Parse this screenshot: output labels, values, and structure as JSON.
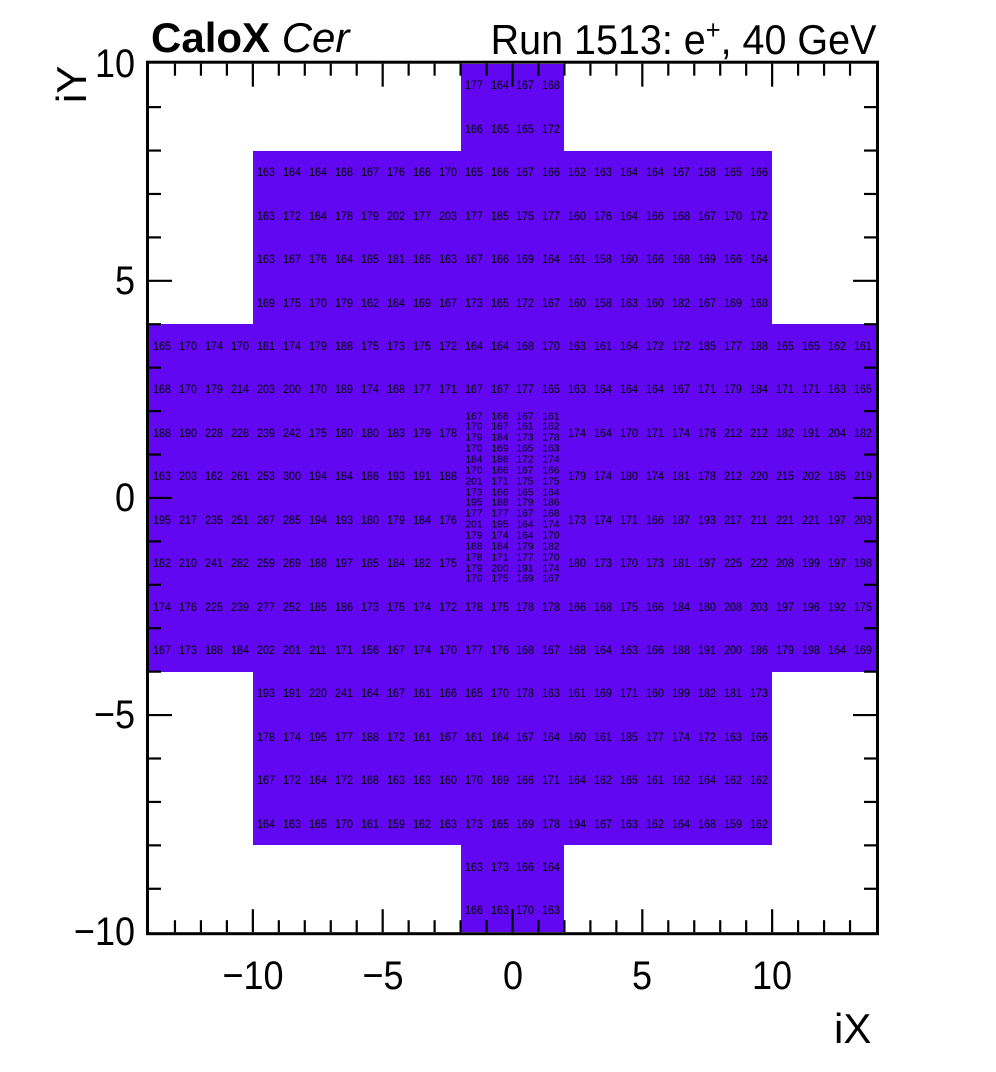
{
  "chart_data": {
    "type": "heatmap",
    "title_left_bold": "CaloX",
    "title_left_italic": "Cer",
    "title_right_prefix": "Run 1513: e",
    "title_right_sup": "+",
    "title_right_suffix": ", 40 GeV",
    "xlabel": "iX",
    "ylabel": "iY",
    "x_range": [
      -14,
      14
    ],
    "y_range": [
      -10,
      10
    ],
    "x_major_ticks": [
      -10,
      -5,
      0,
      5,
      10
    ],
    "x_major_labels": [
      "−10",
      "−5",
      "0",
      "5",
      "10"
    ],
    "y_major_ticks": [
      10,
      5,
      0,
      -5,
      -10
    ],
    "y_major_labels": [
      "10",
      "5",
      "0",
      "−5",
      "−10"
    ],
    "fill_color": "#6207f2",
    "text_color": "#000000",
    "fill_regions": [
      {
        "x": [
          -2,
          2
        ],
        "y": [
          -10,
          10
        ]
      },
      {
        "x": [
          -10,
          10
        ],
        "y": [
          -8,
          8
        ]
      },
      {
        "x": [
          -14,
          14
        ],
        "y": [
          -4,
          4
        ]
      }
    ],
    "coarse_rows": [
      {
        "y": 9.5,
        "x0": -1.5,
        "values": [
          177,
          164,
          167,
          168
        ]
      },
      {
        "y": 8.5,
        "x0": -1.5,
        "values": [
          166,
          165,
          165,
          172
        ]
      },
      {
        "y": 7.5,
        "x0": -9.5,
        "values": [
          163,
          164,
          164,
          168,
          167,
          176,
          166,
          170,
          165,
          166,
          167,
          166,
          162,
          163,
          164,
          164,
          167,
          168,
          165,
          166
        ]
      },
      {
        "y": 6.5,
        "x0": -9.5,
        "values": [
          163,
          172,
          164,
          178,
          179,
          202,
          177,
          203,
          177,
          185,
          175,
          177,
          160,
          176,
          164,
          166,
          168,
          167,
          170,
          172
        ]
      },
      {
        "y": 5.5,
        "x0": -9.5,
        "values": [
          163,
          167,
          176,
          164,
          185,
          181,
          165,
          163,
          167,
          166,
          169,
          164,
          161,
          158,
          160,
          166,
          168,
          169,
          166,
          164
        ]
      },
      {
        "y": 4.5,
        "x0": -9.5,
        "values": [
          169,
          175,
          170,
          179,
          162,
          164,
          169,
          167,
          173,
          165,
          172,
          167,
          160,
          158,
          163,
          160,
          182,
          167,
          169,
          168
        ]
      },
      {
        "y": 3.5,
        "x0": -13.5,
        "values": [
          165,
          170,
          174,
          170,
          181,
          174,
          179,
          188,
          175,
          173,
          175,
          172,
          164,
          164,
          168,
          170,
          163,
          161,
          164,
          172,
          172,
          185,
          177,
          188,
          165,
          165,
          162,
          161
        ]
      },
      {
        "y": 2.5,
        "x0": -13.5,
        "values": [
          168,
          170,
          179,
          214,
          203,
          200,
          170,
          189,
          174,
          168,
          177,
          171,
          167,
          167,
          177,
          165,
          163,
          164,
          164,
          164,
          167,
          171,
          179,
          184,
          171,
          171,
          163,
          165
        ]
      },
      {
        "y": 1.5,
        "x0": -13.5,
        "values": [
          188,
          190,
          228,
          228,
          239,
          242,
          175,
          180,
          180,
          183,
          179,
          178
        ]
      },
      {
        "y": 1.5,
        "x0": 2.5,
        "values": [
          174,
          164,
          170,
          171,
          174,
          176,
          212,
          212,
          182,
          191,
          204,
          182
        ]
      },
      {
        "y": 0.5,
        "x0": -13.5,
        "values": [
          163,
          203,
          162,
          261,
          253,
          300,
          194,
          184,
          186,
          193,
          191,
          188
        ]
      },
      {
        "y": 0.5,
        "x0": 2.5,
        "values": [
          179,
          174,
          180,
          174,
          181,
          178,
          212,
          220,
          215,
          202,
          185,
          219
        ]
      },
      {
        "y": -0.5,
        "x0": -13.5,
        "values": [
          195,
          217,
          235,
          251,
          267,
          285,
          194,
          193,
          180,
          179,
          184,
          176
        ]
      },
      {
        "y": -0.5,
        "x0": 2.5,
        "values": [
          173,
          174,
          171,
          166,
          187,
          193,
          217,
          211,
          221,
          221,
          197,
          203
        ]
      },
      {
        "y": -1.5,
        "x0": -13.5,
        "values": [
          182,
          210,
          241,
          282,
          259,
          269,
          188,
          197,
          185,
          184,
          182,
          175
        ]
      },
      {
        "y": -1.5,
        "x0": 2.5,
        "values": [
          180,
          173,
          170,
          173,
          181,
          197,
          225,
          222,
          208,
          199,
          197,
          198
        ]
      },
      {
        "y": -2.5,
        "x0": -13.5,
        "values": [
          174,
          176,
          225,
          239,
          277,
          252,
          185,
          186,
          173,
          175,
          174,
          172,
          178,
          175,
          178,
          178,
          166,
          168,
          175,
          166,
          184,
          180,
          208,
          203,
          197,
          196,
          192,
          175
        ]
      },
      {
        "y": -3.5,
        "x0": -13.5,
        "values": [
          167,
          173,
          188,
          184,
          202,
          201,
          211,
          171,
          156,
          167,
          174,
          170,
          177,
          176,
          168,
          167,
          168,
          164,
          163,
          166,
          188,
          191,
          200,
          186,
          179,
          198,
          164,
          169
        ]
      },
      {
        "y": -4.5,
        "x0": -9.5,
        "values": [
          193,
          191,
          220,
          241,
          164,
          167,
          161,
          166,
          165,
          170,
          178,
          163,
          161,
          169,
          171,
          160,
          199,
          182,
          181,
          173
        ]
      },
      {
        "y": -5.5,
        "x0": -9.5,
        "values": [
          178,
          174,
          195,
          177,
          188,
          172,
          161,
          167,
          161,
          164,
          167,
          164,
          160,
          161,
          185,
          177,
          174,
          172,
          163,
          166
        ]
      },
      {
        "y": -6.5,
        "x0": -9.5,
        "values": [
          167,
          172,
          164,
          172,
          168,
          163,
          163,
          160,
          170,
          169,
          166,
          171,
          164,
          162,
          165,
          161,
          162,
          164,
          162,
          162
        ]
      },
      {
        "y": -7.5,
        "x0": -9.5,
        "values": [
          164,
          163,
          165,
          170,
          161,
          159,
          162,
          163,
          173,
          165,
          169,
          178,
          194,
          167,
          163,
          162,
          164,
          168,
          159,
          162
        ]
      },
      {
        "y": -8.5,
        "x0": -1.5,
        "values": [
          163,
          173,
          166,
          164
        ]
      },
      {
        "y": -9.5,
        "x0": -1.5,
        "values": [
          166,
          163,
          170,
          163
        ]
      }
    ],
    "fine_block": {
      "x_centers": [
        -1.5,
        -0.5,
        0.5,
        1.5
      ],
      "y_start": 1.875,
      "y_step": -0.25,
      "rows": [
        [
          167,
          168,
          167,
          161
        ],
        [
          170,
          167,
          161,
          162
        ],
        [
          179,
          184,
          173,
          178
        ],
        [
          170,
          169,
          165,
          163
        ],
        [
          184,
          186,
          172,
          174
        ],
        [
          170,
          166,
          167,
          166
        ],
        [
          201,
          171,
          175,
          175
        ],
        [
          173,
          166,
          165,
          164
        ],
        [
          195,
          188,
          179,
          186
        ],
        [
          177,
          177,
          167,
          168
        ],
        [
          201,
          195,
          164,
          174
        ],
        [
          179,
          174,
          164,
          170
        ],
        [
          188,
          184,
          179,
          182
        ],
        [
          178,
          171,
          177,
          170
        ],
        [
          179,
          200,
          191,
          174
        ],
        [
          170,
          175,
          169,
          167
        ]
      ]
    }
  }
}
